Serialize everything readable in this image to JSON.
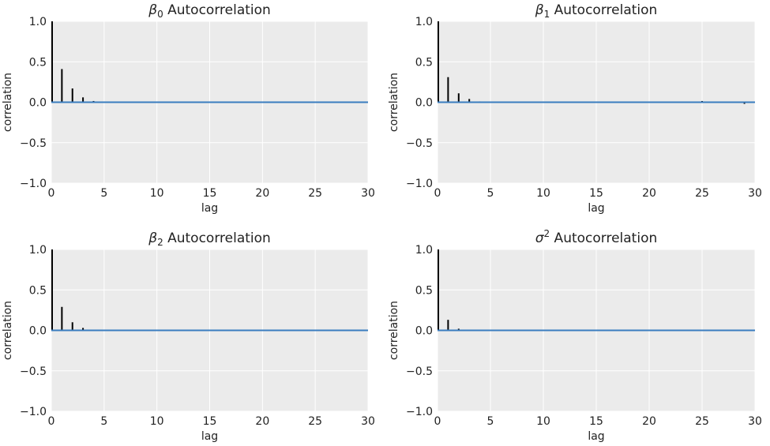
{
  "chart_data": [
    {
      "type": "bar",
      "title": {
        "symbol": "β",
        "sub": "0",
        "sup": "",
        "text": " Autocorrelation"
      },
      "xlabel": "lag",
      "ylabel": "correlation",
      "xlim": [
        0,
        30
      ],
      "ylim": [
        -1.0,
        1.0
      ],
      "xticks": [
        "0",
        "5",
        "10",
        "15",
        "20",
        "25",
        "30"
      ],
      "yticks": [
        "−1.0",
        "−0.5",
        "0.0",
        "0.5",
        "1.0"
      ],
      "grid": true,
      "x": [
        0,
        1,
        2,
        3,
        4
      ],
      "values": [
        1.0,
        0.41,
        0.17,
        0.06,
        0.015
      ]
    },
    {
      "type": "bar",
      "title": {
        "symbol": "β",
        "sub": "1",
        "sup": "",
        "text": " Autocorrelation"
      },
      "xlabel": "lag",
      "ylabel": "correlation",
      "xlim": [
        0,
        30
      ],
      "ylim": [
        -1.0,
        1.0
      ],
      "xticks": [
        "0",
        "5",
        "10",
        "15",
        "20",
        "25",
        "30"
      ],
      "yticks": [
        "−1.0",
        "−0.5",
        "0.0",
        "0.5",
        "1.0"
      ],
      "grid": true,
      "x": [
        0,
        1,
        2,
        3,
        4,
        25,
        29
      ],
      "values": [
        1.0,
        0.31,
        0.11,
        0.04,
        0.01,
        0.015,
        -0.02
      ]
    },
    {
      "type": "bar",
      "title": {
        "symbol": "β",
        "sub": "2",
        "sup": "",
        "text": " Autocorrelation"
      },
      "xlabel": "lag",
      "ylabel": "correlation",
      "xlim": [
        0,
        30
      ],
      "ylim": [
        -1.0,
        1.0
      ],
      "xticks": [
        "0",
        "5",
        "10",
        "15",
        "20",
        "25",
        "30"
      ],
      "yticks": [
        "−1.0",
        "−0.5",
        "0.0",
        "0.5",
        "1.0"
      ],
      "grid": true,
      "x": [
        0,
        1,
        2,
        3
      ],
      "values": [
        1.0,
        0.29,
        0.1,
        0.03
      ]
    },
    {
      "type": "bar",
      "title": {
        "symbol": "σ",
        "sub": "",
        "sup": "2",
        "text": " Autocorrelation"
      },
      "xlabel": "lag",
      "ylabel": "correlation",
      "xlim": [
        0,
        30
      ],
      "ylim": [
        -1.0,
        1.0
      ],
      "xticks": [
        "0",
        "5",
        "10",
        "15",
        "20",
        "25",
        "30"
      ],
      "yticks": [
        "−1.0",
        "−0.5",
        "0.0",
        "0.5",
        "1.0"
      ],
      "grid": true,
      "x": [
        0,
        1,
        2
      ],
      "values": [
        1.0,
        0.13,
        0.02
      ]
    }
  ],
  "colors": {
    "panel_background": "#ebebeb",
    "gridline": "#ffffff",
    "bar": "#000000",
    "zero_line": "#3a7dbf"
  }
}
